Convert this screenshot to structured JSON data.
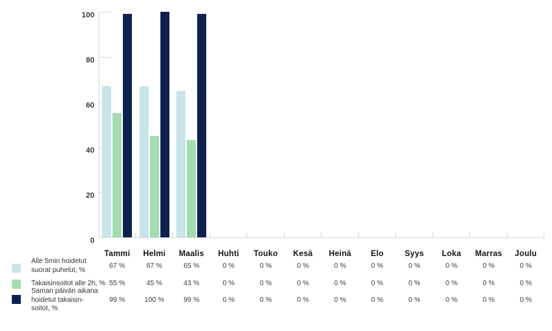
{
  "chart_data": {
    "type": "bar",
    "categories": [
      "Tammi",
      "Helmi",
      "Maalis",
      "Huhti",
      "Touko",
      "Kesä",
      "Heinä",
      "Elo",
      "Syys",
      "Loka",
      "Marras",
      "Joulu"
    ],
    "series": [
      {
        "name": "Alle 5min hoidetut suorat puhelut, %",
        "color": "#c7e4e9",
        "values": [
          67,
          67,
          65,
          0,
          0,
          0,
          0,
          0,
          0,
          0,
          0,
          0
        ]
      },
      {
        "name": "Takaisinsoitot alle 2h, %",
        "color": "#a2ddae",
        "values": [
          55,
          45,
          43,
          0,
          0,
          0,
          0,
          0,
          0,
          0,
          0,
          0
        ]
      },
      {
        "name": "Saman päivän aikana hoidetut takaisinsoitot, %",
        "color": "#0f2150",
        "values": [
          99,
          100,
          99,
          0,
          0,
          0,
          0,
          0,
          0,
          0,
          0,
          0
        ]
      }
    ],
    "title": "",
    "xlabel": "",
    "ylabel": "",
    "ylim": [
      0,
      100
    ],
    "yticks": [
      0,
      20,
      40,
      60,
      80,
      100
    ],
    "grid": false,
    "legend_position": "bottom-left",
    "value_suffix": " %"
  },
  "legend": [
    {
      "lines": [
        "Alle 5min hoidetut",
        "suorat puhelut, %"
      ],
      "color": "#c7e4e9"
    },
    {
      "lines": [
        "Takaisinsoitot alle 2h, %"
      ],
      "color": "#a2ddae"
    },
    {
      "lines": [
        "Saman päivän aikana",
        "hoidetut takaisin-",
        "soitot, %"
      ],
      "color": "#0f2150"
    }
  ],
  "colors": {
    "axis": "#d9d9d9",
    "background": "#ffffff",
    "month_label": "#141414",
    "value_label": "#3c3c3c",
    "series_1": "#c7e4e9",
    "series_2": "#a2ddae",
    "series_3": "#0f2150"
  }
}
